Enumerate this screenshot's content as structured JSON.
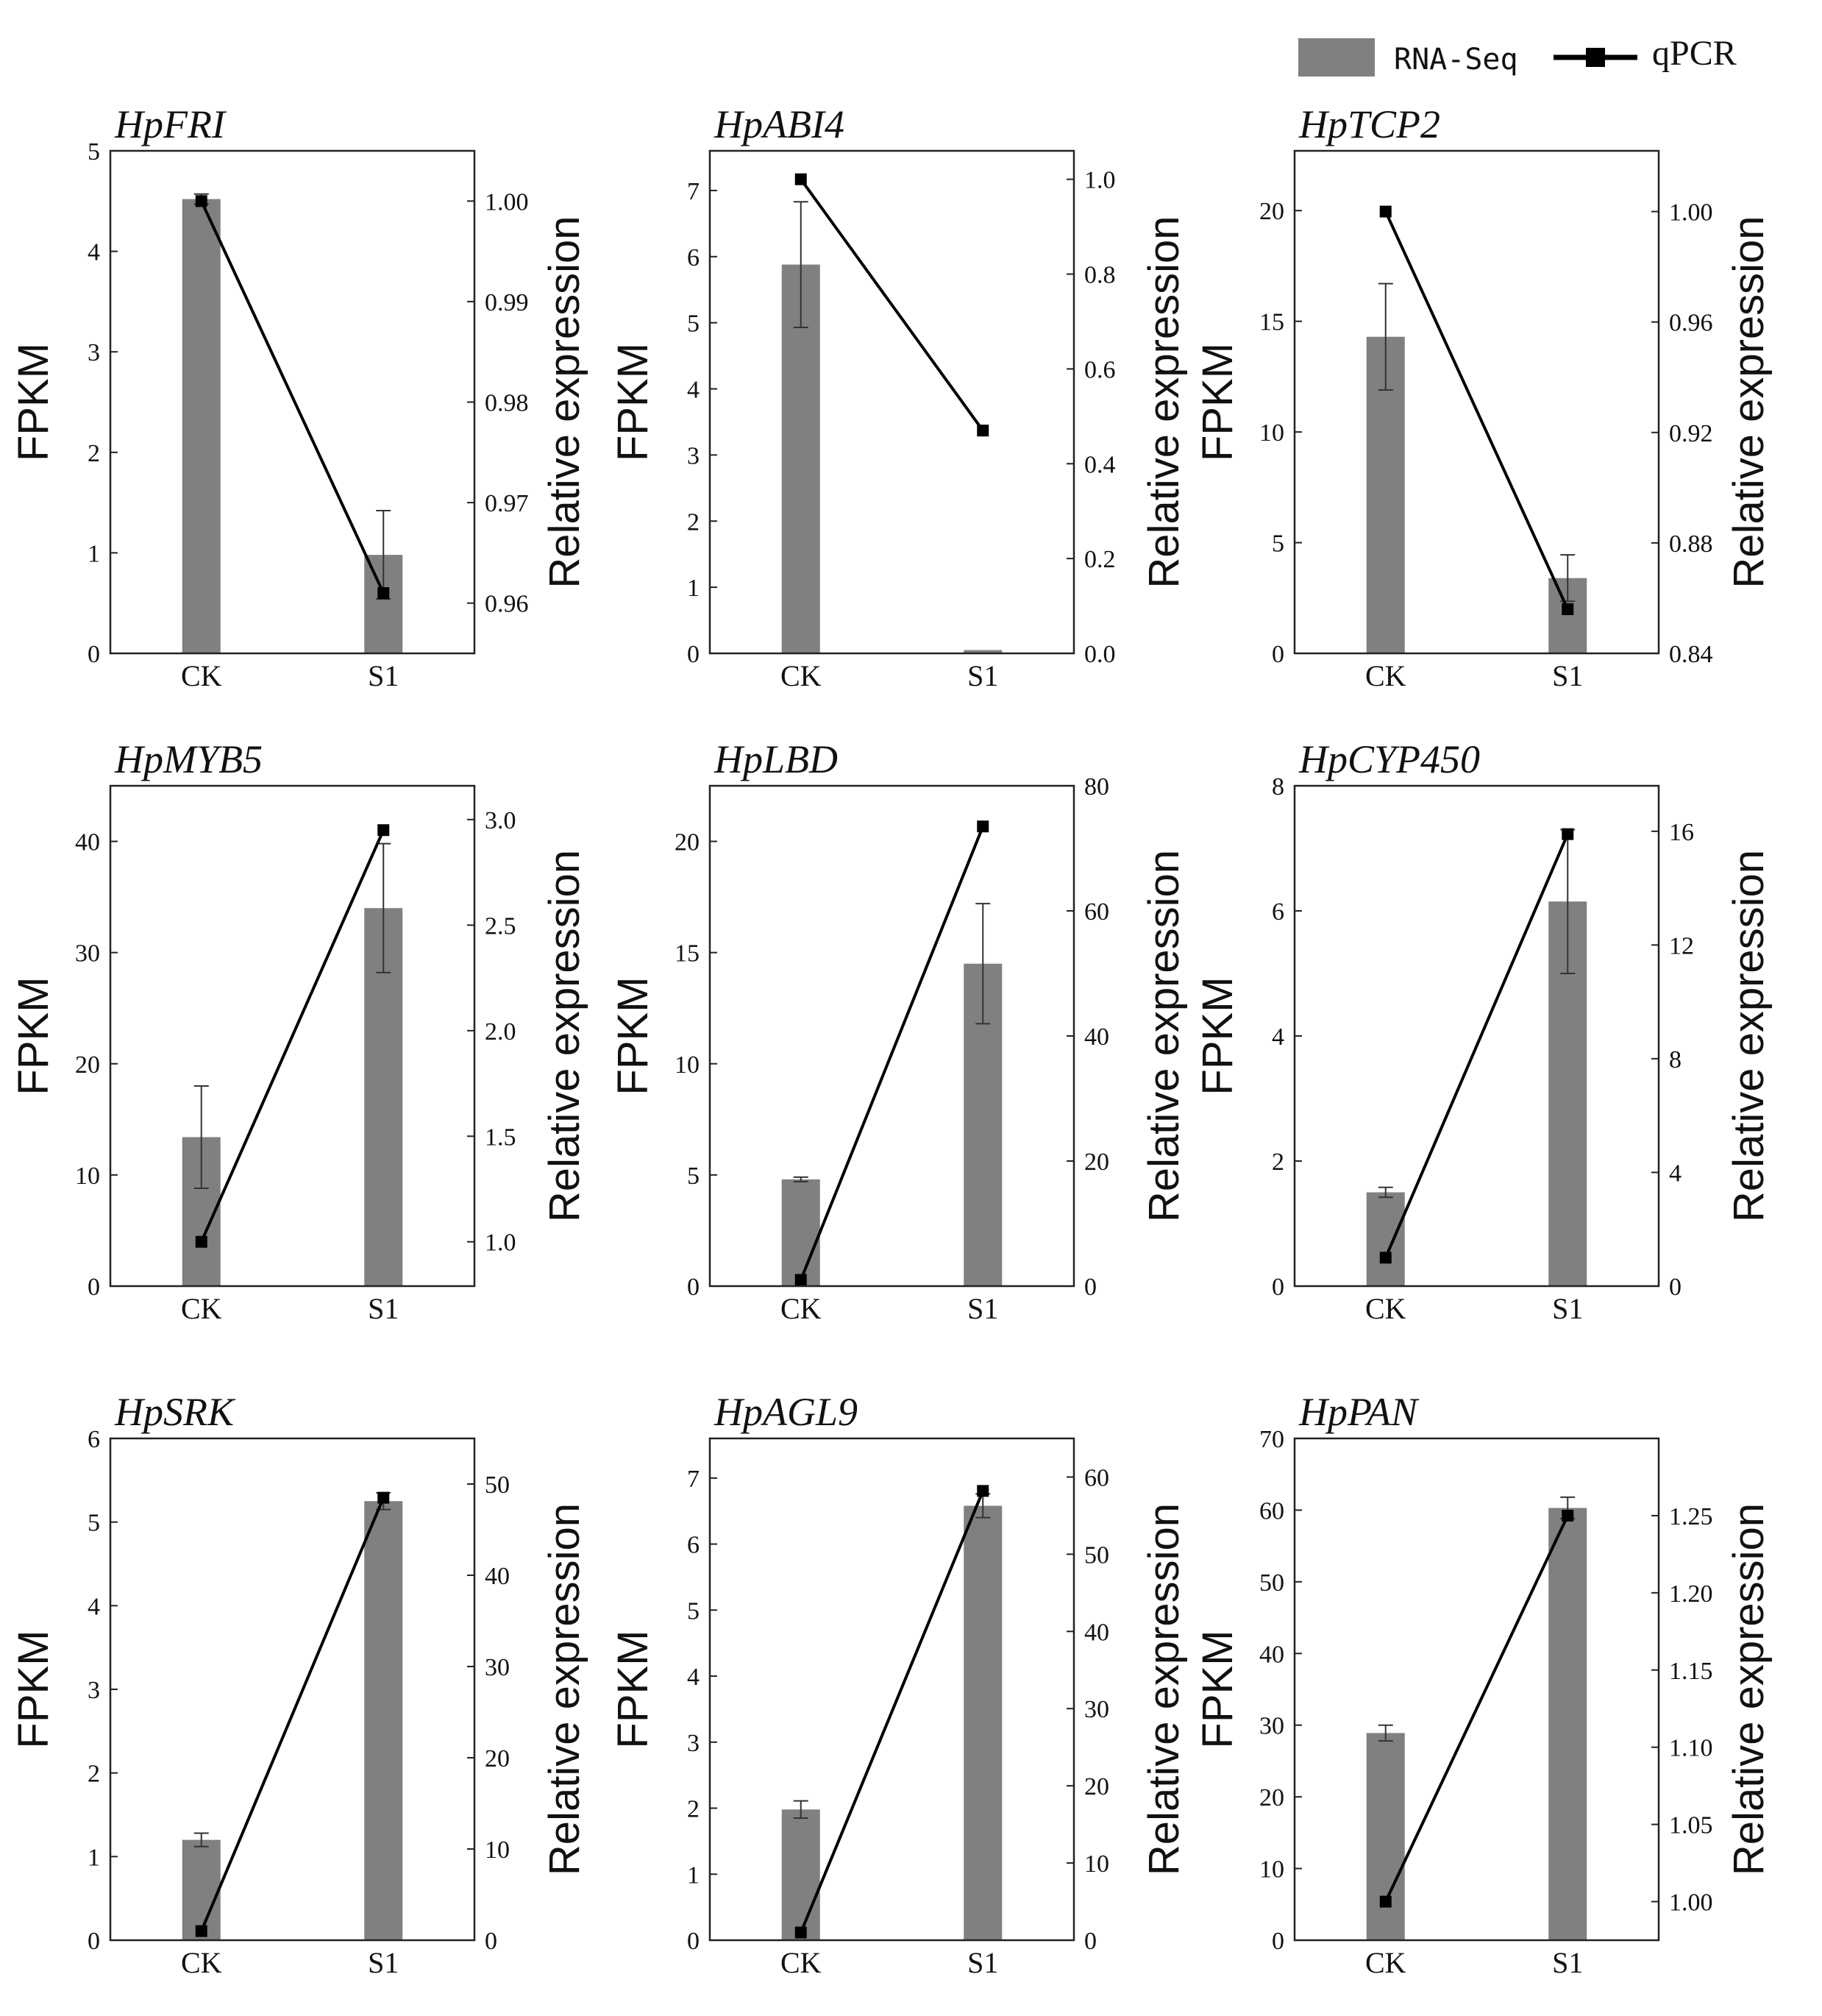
{
  "legend": {
    "bar_label": "RNA-Seq",
    "line_label": "qPCR",
    "bar_color": "#808080",
    "line_color": "#000000"
  },
  "chart_data": [
    {
      "type": "bar+line",
      "title": "HpFRI",
      "categories": [
        "CK",
        "S1"
      ],
      "ylabel": "FPKM",
      "y2label": "Relative expression",
      "ylim": [
        0,
        5
      ],
      "yticks": [
        0,
        1,
        2,
        3,
        4,
        5
      ],
      "ytick_labels": [
        "0",
        "1",
        "2",
        "3",
        "4",
        "5"
      ],
      "y2lim": [
        0.955,
        1.005
      ],
      "y2ticks": [
        0.96,
        0.97,
        0.98,
        0.99,
        1.0
      ],
      "y2tick_labels": [
        "0.96",
        "0.97",
        "0.98",
        "0.99",
        "1.00"
      ],
      "series": [
        {
          "name": "RNA-Seq",
          "kind": "bar",
          "axis": "left",
          "values": [
            4.52,
            0.98
          ],
          "errors": [
            0.05,
            0.44
          ]
        },
        {
          "name": "qPCR",
          "kind": "line",
          "axis": "right",
          "values": [
            1.0,
            0.961
          ]
        }
      ]
    },
    {
      "type": "bar+line",
      "title": "HpABI4",
      "categories": [
        "CK",
        "S1"
      ],
      "ylabel": "FPKM",
      "y2label": "Relative expression",
      "ylim": [
        0,
        7.6
      ],
      "yticks": [
        0,
        1,
        2,
        3,
        4,
        5,
        6,
        7
      ],
      "ytick_labels": [
        "0",
        "1",
        "2",
        "3",
        "4",
        "5",
        "6",
        "7"
      ],
      "y2lim": [
        0,
        1.06
      ],
      "y2ticks": [
        0,
        0.2,
        0.4,
        0.6,
        0.8,
        1.0
      ],
      "y2tick_labels": [
        "0.0",
        "0.2",
        "0.4",
        "0.6",
        "0.8",
        "1.0"
      ],
      "series": [
        {
          "name": "RNA-Seq",
          "kind": "bar",
          "axis": "left",
          "values": [
            5.88,
            0.05
          ],
          "errors": [
            0.95,
            0
          ]
        },
        {
          "name": "qPCR",
          "kind": "line",
          "axis": "right",
          "values": [
            1.0,
            0.47
          ]
        }
      ]
    },
    {
      "type": "bar+line",
      "title": "HpTCP2",
      "categories": [
        "CK",
        "S1"
      ],
      "ylabel": "FPKM",
      "y2label": "Relative expression",
      "ylim": [
        0,
        22.7
      ],
      "yticks": [
        0,
        5,
        10,
        15,
        20
      ],
      "ytick_labels": [
        "0",
        "5",
        "10",
        "15",
        "20"
      ],
      "y2lim": [
        0.84,
        1.022
      ],
      "y2ticks": [
        0.84,
        0.88,
        0.92,
        0.96,
        1.0
      ],
      "y2tick_labels": [
        "0.84",
        "0.88",
        "0.92",
        "0.96",
        "1.00"
      ],
      "series": [
        {
          "name": "RNA-Seq",
          "kind": "bar",
          "axis": "left",
          "values": [
            14.3,
            3.4
          ],
          "errors": [
            2.4,
            1.05
          ]
        },
        {
          "name": "qPCR",
          "kind": "line",
          "axis": "right",
          "values": [
            1.0,
            0.856
          ]
        }
      ]
    },
    {
      "type": "bar+line",
      "title": "HpMYB5",
      "categories": [
        "CK",
        "S1"
      ],
      "ylabel": "FPKM",
      "y2label": "Relative expression",
      "ylim": [
        0,
        45
      ],
      "yticks": [
        0,
        10,
        20,
        30,
        40
      ],
      "ytick_labels": [
        "0",
        "10",
        "20",
        "30",
        "40"
      ],
      "y2lim": [
        0.79,
        3.16
      ],
      "y2ticks": [
        1.0,
        1.5,
        2.0,
        2.5,
        3.0
      ],
      "y2tick_labels": [
        "1.0",
        "1.5",
        "2.0",
        "2.5",
        "3.0"
      ],
      "series": [
        {
          "name": "RNA-Seq",
          "kind": "bar",
          "axis": "left",
          "values": [
            13.4,
            34.0
          ],
          "errors": [
            4.6,
            5.8
          ]
        },
        {
          "name": "qPCR",
          "kind": "line",
          "axis": "right",
          "values": [
            1.0,
            2.95
          ]
        }
      ]
    },
    {
      "type": "bar+line",
      "title": "HpLBD",
      "categories": [
        "CK",
        "S1"
      ],
      "ylabel": "FPKM",
      "y2label": "Relative expression",
      "ylim": [
        0,
        22.5
      ],
      "yticks": [
        0,
        5,
        10,
        15,
        20
      ],
      "ytick_labels": [
        "0",
        "5",
        "10",
        "15",
        "20"
      ],
      "y2lim": [
        0,
        80
      ],
      "y2ticks": [
        0,
        20,
        40,
        60,
        80
      ],
      "y2tick_labels": [
        "0",
        "20",
        "40",
        "60",
        "80"
      ],
      "series": [
        {
          "name": "RNA-Seq",
          "kind": "bar",
          "axis": "left",
          "values": [
            4.8,
            14.5
          ],
          "errors": [
            0.1,
            2.7
          ]
        },
        {
          "name": "qPCR",
          "kind": "line",
          "axis": "right",
          "values": [
            1.0,
            73.5
          ]
        }
      ]
    },
    {
      "type": "bar+line",
      "title": "HpCYP450",
      "categories": [
        "CK",
        "S1"
      ],
      "ylabel": "FPKM",
      "y2label": "Relative expression",
      "ylim": [
        0,
        8
      ],
      "yticks": [
        0,
        2,
        4,
        6,
        8
      ],
      "ytick_labels": [
        "0",
        "2",
        "4",
        "6",
        "8"
      ],
      "y2lim": [
        0,
        17.6
      ],
      "y2ticks": [
        0,
        4,
        8,
        12,
        16
      ],
      "y2tick_labels": [
        "0",
        "4",
        "8",
        "12",
        "16"
      ],
      "series": [
        {
          "name": "RNA-Seq",
          "kind": "bar",
          "axis": "left",
          "values": [
            1.5,
            6.15
          ],
          "errors": [
            0.08,
            1.15
          ]
        },
        {
          "name": "qPCR",
          "kind": "line",
          "axis": "right",
          "values": [
            1.0,
            15.9
          ]
        }
      ]
    },
    {
      "type": "bar+line",
      "title": "HpSRK",
      "categories": [
        "CK",
        "S1"
      ],
      "ylabel": "FPKM",
      "y2label": "Relative expression",
      "ylim": [
        0,
        6
      ],
      "yticks": [
        0,
        1,
        2,
        3,
        4,
        5,
        6
      ],
      "ytick_labels": [
        "0",
        "1",
        "2",
        "3",
        "4",
        "5",
        "6"
      ],
      "y2lim": [
        0,
        55
      ],
      "y2ticks": [
        0,
        10,
        20,
        30,
        40,
        50
      ],
      "y2tick_labels": [
        "0",
        "10",
        "20",
        "30",
        "40",
        "50"
      ],
      "series": [
        {
          "name": "RNA-Seq",
          "kind": "bar",
          "axis": "left",
          "values": [
            1.2,
            5.25
          ],
          "errors": [
            0.08,
            0.1
          ]
        },
        {
          "name": "qPCR",
          "kind": "line",
          "axis": "right",
          "values": [
            1.0,
            48.5
          ]
        }
      ]
    },
    {
      "type": "bar+line",
      "title": "HpAGL9",
      "categories": [
        "CK",
        "S1"
      ],
      "ylabel": "FPKM",
      "y2label": "Relative expression",
      "ylim": [
        0,
        7.6
      ],
      "yticks": [
        0,
        1,
        2,
        3,
        4,
        5,
        6,
        7
      ],
      "ytick_labels": [
        "0",
        "1",
        "2",
        "3",
        "4",
        "5",
        "6",
        "7"
      ],
      "y2lim": [
        0,
        65
      ],
      "y2ticks": [
        0,
        10,
        20,
        30,
        40,
        50,
        60
      ],
      "y2tick_labels": [
        "0",
        "10",
        "20",
        "30",
        "40",
        "50",
        "60"
      ],
      "series": [
        {
          "name": "RNA-Seq",
          "kind": "bar",
          "axis": "left",
          "values": [
            1.98,
            6.58
          ],
          "errors": [
            0.13,
            0.18
          ]
        },
        {
          "name": "qPCR",
          "kind": "line",
          "axis": "right",
          "values": [
            1.0,
            58.2
          ]
        }
      ]
    },
    {
      "type": "bar+line",
      "title": "HpPAN",
      "categories": [
        "CK",
        "S1"
      ],
      "ylabel": "FPKM",
      "y2label": "Relative expression",
      "ylim": [
        0,
        70
      ],
      "yticks": [
        0,
        10,
        20,
        30,
        40,
        50,
        60,
        70
      ],
      "ytick_labels": [
        "0",
        "10",
        "20",
        "30",
        "40",
        "50",
        "60",
        "70"
      ],
      "y2lim": [
        0.975,
        1.3
      ],
      "y2ticks": [
        1.0,
        1.05,
        1.1,
        1.15,
        1.2,
        1.25
      ],
      "y2tick_labels": [
        "1.00",
        "1.05",
        "1.10",
        "1.15",
        "1.20",
        "1.25"
      ],
      "series": [
        {
          "name": "RNA-Seq",
          "kind": "bar",
          "axis": "left",
          "values": [
            28.9,
            60.3
          ],
          "errors": [
            1.1,
            1.5
          ]
        },
        {
          "name": "qPCR",
          "kind": "line",
          "axis": "right",
          "values": [
            1.0,
            1.25
          ]
        }
      ]
    }
  ]
}
